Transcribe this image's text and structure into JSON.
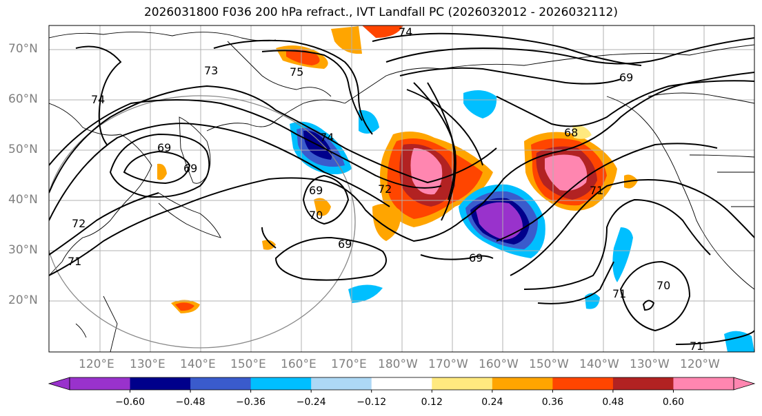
{
  "title": "2026031800 F036 200 hPa refract., IVT Landfall PC (2026032012 - 2026032112)",
  "lat_labels": [
    "70°N",
    "60°N",
    "50°N",
    "40°N",
    "30°N",
    "20°N"
  ],
  "lon_labels": [
    "120°E",
    "130°E",
    "140°E",
    "150°E",
    "160°E",
    "170°E",
    "180°W",
    "170°W",
    "160°W",
    "150°W",
    "140°W",
    "130°W",
    "120°W"
  ],
  "contour_labels": [
    "74",
    "73",
    "75",
    "69",
    "74",
    "69",
    "68",
    "74",
    "69",
    "69",
    "72",
    "69",
    "69",
    "71",
    "72",
    "71",
    "70",
    "71",
    "71",
    "70"
  ],
  "colorbar": {
    "ticks": [
      "−0.60",
      "−0.48",
      "−0.36",
      "−0.24",
      "−0.12",
      "0.12",
      "0.24",
      "0.36",
      "0.48",
      "0.60"
    ],
    "colors": [
      "#9932cc",
      "#00008b",
      "#3a5bcc",
      "#00bfff",
      "#add8f5",
      "#ffffff",
      "#ffe97f",
      "#ffa500",
      "#ff4500",
      "#b22222",
      "#ff86b0"
    ]
  }
}
